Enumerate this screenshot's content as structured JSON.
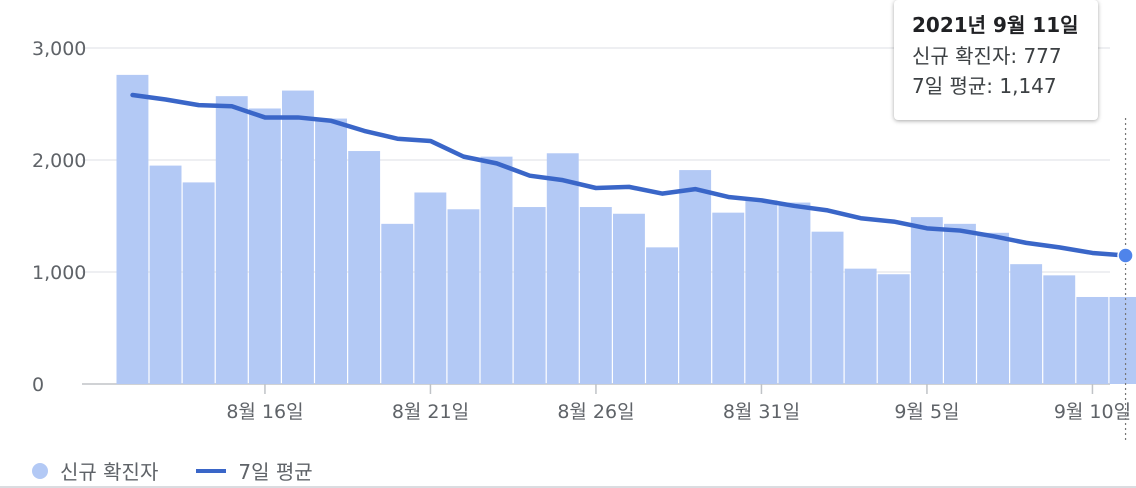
{
  "chart_data": {
    "type": "bar",
    "x_tick_labels": [
      "8월 16일",
      "8월 21일",
      "8월 26일",
      "8월 31일",
      "9월 5일",
      "9월 10일"
    ],
    "y_tick_labels": [
      "3,000",
      "2,000",
      "1,000",
      "0"
    ],
    "ylim": [
      0,
      3000
    ],
    "grid": true,
    "legend_position": "bottom-left",
    "series": [
      {
        "name": "신규 확진자",
        "type": "bar",
        "color": "#b3c9f5",
        "x": [
          "8월 12일",
          "8월 13일",
          "8월 14일",
          "8월 15일",
          "8월 16일",
          "8월 17일",
          "8월 18일",
          "8월 19일",
          "8월 20일",
          "8월 21일",
          "8월 22일",
          "8월 23일",
          "8월 24일",
          "8월 25일",
          "8월 26일",
          "8월 27일",
          "8월 28일",
          "8월 29일",
          "8월 30일",
          "8월 31일",
          "9월 1일",
          "9월 2일",
          "9월 3일",
          "9월 4일",
          "9월 5일",
          "9월 6일",
          "9월 7일",
          "9월 8일",
          "9월 9일",
          "9월 10일",
          "9월 11일"
        ],
        "values": [
          2760,
          1950,
          1800,
          2570,
          2460,
          2620,
          2370,
          2080,
          1430,
          1710,
          1560,
          2030,
          1580,
          2060,
          1580,
          1520,
          1220,
          1910,
          1530,
          1640,
          1620,
          1360,
          1030,
          980,
          1490,
          1430,
          1350,
          1070,
          970,
          777,
          777
        ]
      },
      {
        "name": "7일 평균",
        "type": "line",
        "color": "#3a66c8",
        "x": [
          "8월 12일",
          "8월 13일",
          "8월 14일",
          "8월 15일",
          "8월 16일",
          "8월 17일",
          "8월 18일",
          "8월 19일",
          "8월 20일",
          "8월 21일",
          "8월 22일",
          "8월 23일",
          "8월 24일",
          "8월 25일",
          "8월 26일",
          "8월 27일",
          "8월 28일",
          "8월 29일",
          "8월 30일",
          "8월 31일",
          "9월 1일",
          "9월 2일",
          "9월 3일",
          "9월 4일",
          "9월 5일",
          "9월 6일",
          "9월 7일",
          "9월 8일",
          "9월 9일",
          "9월 10일",
          "9월 11일"
        ],
        "values": [
          2580,
          2540,
          2490,
          2480,
          2380,
          2380,
          2350,
          2260,
          2190,
          2170,
          2030,
          1970,
          1860,
          1820,
          1750,
          1760,
          1700,
          1740,
          1670,
          1640,
          1590,
          1550,
          1480,
          1450,
          1390,
          1370,
          1320,
          1260,
          1220,
          1170,
          1147
        ]
      }
    ]
  },
  "tooltip": {
    "title": "2021년 9월 11일",
    "new_cases_label": "신규 확진자: 777",
    "avg_label": "7일 평균: 1,147"
  },
  "legend": {
    "bars_label": "신규 확진자",
    "line_label": "7일 평균"
  }
}
